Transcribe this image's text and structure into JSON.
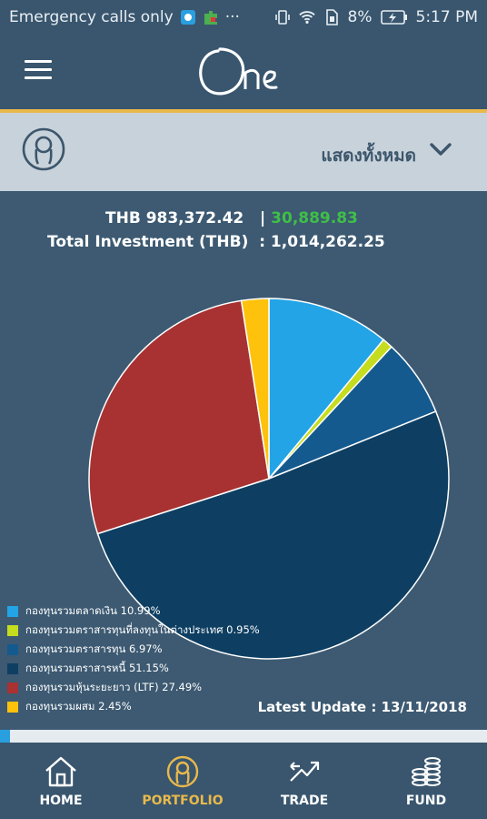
{
  "status_bar": {
    "carrier": "Emergency calls only",
    "overflow": "···",
    "battery": "8%",
    "time": "5:17 PM",
    "icons": [
      "shield-icon",
      "puzzle-icon",
      "vibrate-icon",
      "wifi-icon",
      "sim-icon",
      "battery-charging-icon"
    ]
  },
  "app_bar": {
    "logo_text": "One",
    "menu_icon": "hamburger-menu-icon"
  },
  "filter": {
    "label": "แสดงทั้งหมด",
    "avatar_icon": "user-avatar-icon",
    "dropdown_icon": "chevron-down-icon"
  },
  "summary": {
    "currency_amount": "THB 983,372.42",
    "separator": "|",
    "gain": "30,889.83",
    "total_label": "Total Investment (THB)",
    "total_value": ": 1,014,262.25"
  },
  "chart_data": {
    "type": "pie",
    "slices": [
      {
        "label": "กองทุนรวมตลาดเงิน",
        "value": 10.99,
        "color": "#22a4e6",
        "text": "กองทุนรวมตลาดเงิน 10.99%"
      },
      {
        "label": "กองทุนรวมตราสารทุนที่ลงทุนในต่างประเทศ",
        "value": 0.95,
        "color": "#c6dc1f",
        "text": "กองทุนรวมตราสารทุนที่ลงทุนในต่างประเทศ 0.95%"
      },
      {
        "label": "กองทุนรวมตราสารทุน",
        "value": 6.97,
        "color": "#155a8f",
        "text": "กองทุนรวมตราสารทุน 6.97%"
      },
      {
        "label": "กองทุนรวมตราสารหนี้",
        "value": 51.15,
        "color": "#0e3f62",
        "text": "กองทุนรวมตราสารหนี้ 51.15%"
      },
      {
        "label": "กองทุนรวมหุ้นระยะยาว (LTF)",
        "value": 27.49,
        "color": "#a83232",
        "text": "กองทุนรวมหุ้นระยะยาว (LTF) 27.49%"
      },
      {
        "label": "กองทุนรวมผสม",
        "value": 2.45,
        "color": "#fec20c",
        "text": "กองทุนรวมผสม 2.45%"
      }
    ]
  },
  "latest_update": "Latest Update : 13/11/2018",
  "progress": {
    "value": 0.02,
    "color": "#2a9fe0"
  },
  "nav": {
    "items": [
      {
        "label": "HOME",
        "icon": "home-icon",
        "active": false
      },
      {
        "label": "PORTFOLIO",
        "icon": "portfolio-user-icon",
        "active": true
      },
      {
        "label": "TRADE",
        "icon": "trade-arrows-icon",
        "active": false
      },
      {
        "label": "FUND",
        "icon": "coins-stack-icon",
        "active": false
      }
    ]
  },
  "colors": {
    "accent": "#e9b94b",
    "background": "#3d5a72",
    "gain": "#3fbf47"
  }
}
